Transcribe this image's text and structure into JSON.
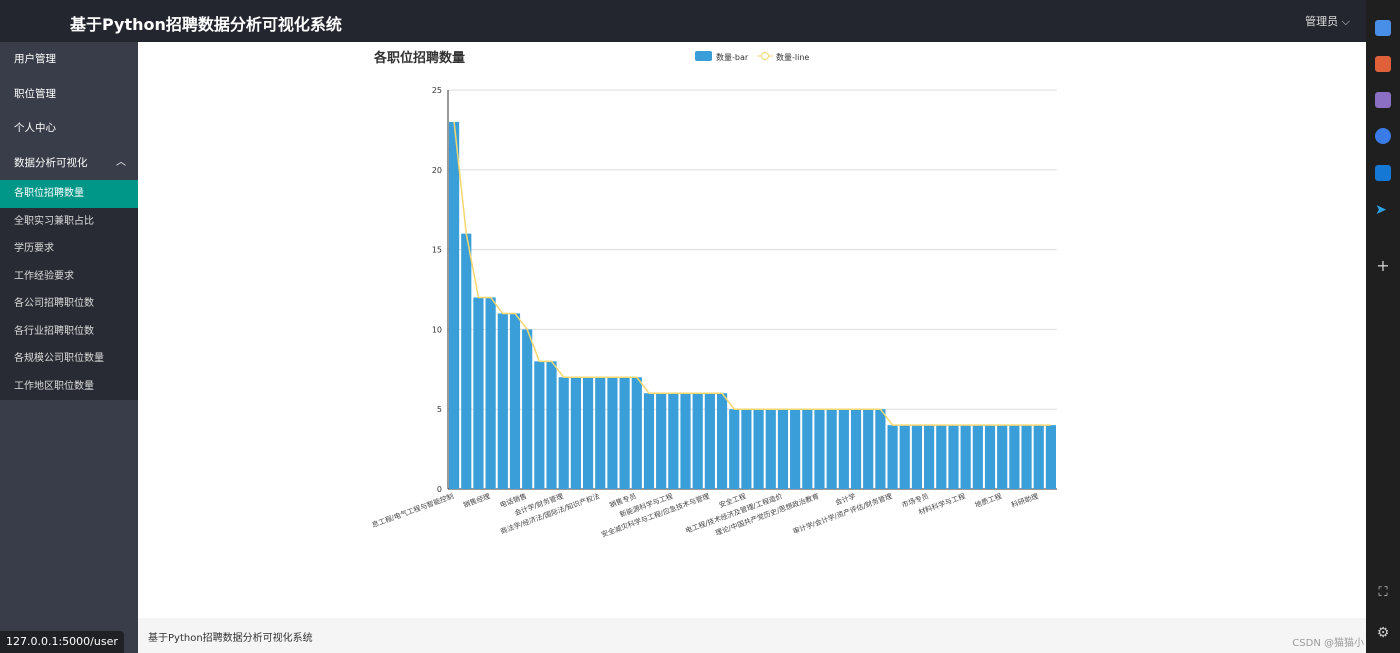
{
  "header": {
    "title": "基于Python招聘数据分析可视化系统",
    "user": "管理员"
  },
  "sidebar": {
    "items": [
      {
        "label": "用户管理"
      },
      {
        "label": "职位管理"
      },
      {
        "label": "个人中心"
      },
      {
        "label": "数据分析可视化"
      }
    ],
    "sub_items": [
      {
        "label": "各职位招聘数量",
        "active": true
      },
      {
        "label": "全职实习兼职占比"
      },
      {
        "label": "学历要求"
      },
      {
        "label": "工作经验要求"
      },
      {
        "label": "各公司招聘职位数"
      },
      {
        "label": "各行业招聘职位数"
      },
      {
        "label": "各规模公司职位数量"
      },
      {
        "label": "工作地区职位数量"
      }
    ]
  },
  "footer": {
    "text": "基于Python招聘数据分析可视化系统"
  },
  "status_url": "127.0.0.1:5000/user",
  "watermark": "CSDN @猫猫小",
  "colors": {
    "bar": "#3a9fd8",
    "line": "#f5d76e",
    "active": "#009688"
  },
  "chart_data": {
    "type": "bar+line",
    "title": "各职位招聘数量",
    "legend": [
      "数量-bar",
      "数量-line"
    ],
    "legend_position": "top",
    "ylim": [
      0,
      25
    ],
    "yticks": [
      0,
      5,
      10,
      15,
      20,
      25
    ],
    "grid": true,
    "values": [
      23,
      16,
      12,
      12,
      11,
      11,
      10,
      8,
      8,
      7,
      7,
      7,
      7,
      7,
      7,
      7,
      6,
      6,
      6,
      6,
      6,
      6,
      6,
      5,
      5,
      5,
      5,
      5,
      5,
      5,
      5,
      5,
      5,
      5,
      5,
      5,
      4,
      4,
      4,
      4,
      4,
      4,
      4,
      4,
      4,
      4,
      4,
      4,
      4,
      4
    ],
    "visible_labels": [
      {
        "i": 0,
        "text": "息工程/电气工程与智能控制"
      },
      {
        "i": 3,
        "text": "销售经理"
      },
      {
        "i": 6,
        "text": "电话销售"
      },
      {
        "i": 9,
        "text": "会计学/财务管理"
      },
      {
        "i": 12,
        "text": "商法学/经济法/国际法/知识产权法"
      },
      {
        "i": 15,
        "text": "销售专员"
      },
      {
        "i": 18,
        "text": "新能源科学与工程"
      },
      {
        "i": 21,
        "text": "安全减灾科学与工程/应急技术与管理"
      },
      {
        "i": 24,
        "text": "安全工程"
      },
      {
        "i": 27,
        "text": "电工程/技术经济及管理/工程造价"
      },
      {
        "i": 30,
        "text": "理论/中国共产党历史/思想政治教育"
      },
      {
        "i": 33,
        "text": "会计学"
      },
      {
        "i": 36,
        "text": "审计学/会计学/资产评估/财务管理"
      },
      {
        "i": 39,
        "text": "市场专员"
      },
      {
        "i": 42,
        "text": "材料科学与工程"
      },
      {
        "i": 45,
        "text": "地质工程"
      },
      {
        "i": 48,
        "text": "科研助理"
      }
    ]
  }
}
